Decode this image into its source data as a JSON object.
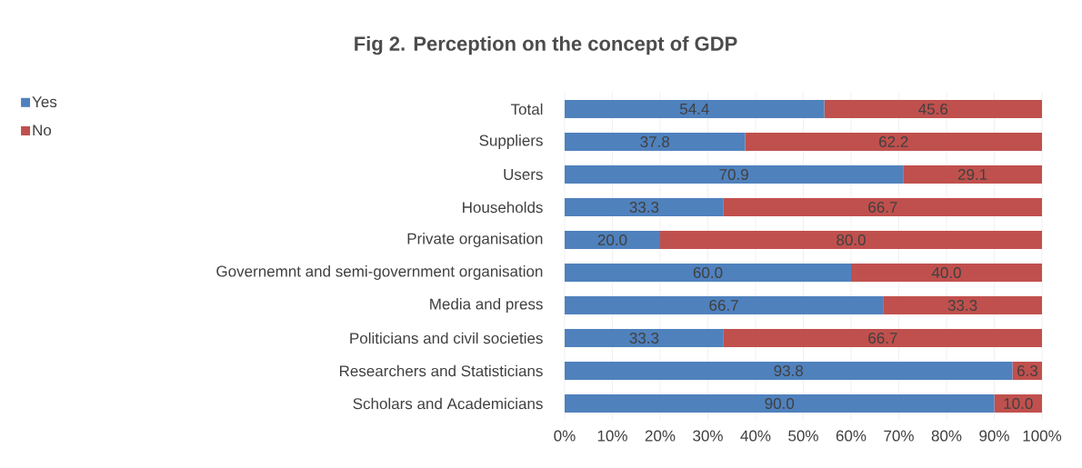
{
  "chart_data": {
    "type": "bar",
    "orientation": "horizontal",
    "stacked": true,
    "title": "Fig 2. Perception on the concept of GDP",
    "categories": [
      "Total",
      "Suppliers",
      "Users",
      "Households",
      "Private organisation",
      "Governemnt and semi-government organisation",
      "Media and press",
      "Politicians and civil societies",
      "Researchers and Statisticians",
      "Scholars and Academicians"
    ],
    "series": [
      {
        "name": "Yes",
        "color": "#4f81bd",
        "values": [
          54.4,
          37.8,
          70.9,
          33.3,
          20.0,
          60.0,
          66.7,
          33.3,
          93.8,
          90.0
        ],
        "value_labels": [
          "54.4",
          "37.8",
          "70.9",
          "33.3",
          "20.0",
          "60.0",
          "66.7",
          "33.3",
          "93.8",
          "90.0"
        ]
      },
      {
        "name": "No",
        "color": "#c0504d",
        "values": [
          45.6,
          62.2,
          29.1,
          66.7,
          80.0,
          40.0,
          33.3,
          66.7,
          6.3,
          10.0
        ],
        "value_labels": [
          "45.6",
          "62.2",
          "29.1",
          "66.7",
          "80.0",
          "40.0",
          "33.3",
          "66.7",
          "6.3",
          "10.0"
        ]
      }
    ],
    "xlim": [
      0,
      100
    ],
    "xticks": [
      {
        "value": 0,
        "label": "0%"
      },
      {
        "value": 10,
        "label": "10%"
      },
      {
        "value": 20,
        "label": "20%"
      },
      {
        "value": 30,
        "label": "30%"
      },
      {
        "value": 40,
        "label": "40%"
      },
      {
        "value": 50,
        "label": "50%"
      },
      {
        "value": 60,
        "label": "60%"
      },
      {
        "value": 70,
        "label": "70%"
      },
      {
        "value": 80,
        "label": "80%"
      },
      {
        "value": 90,
        "label": "90%"
      },
      {
        "value": 100,
        "label": "100%"
      }
    ],
    "grid": "x",
    "legend": "top left"
  }
}
